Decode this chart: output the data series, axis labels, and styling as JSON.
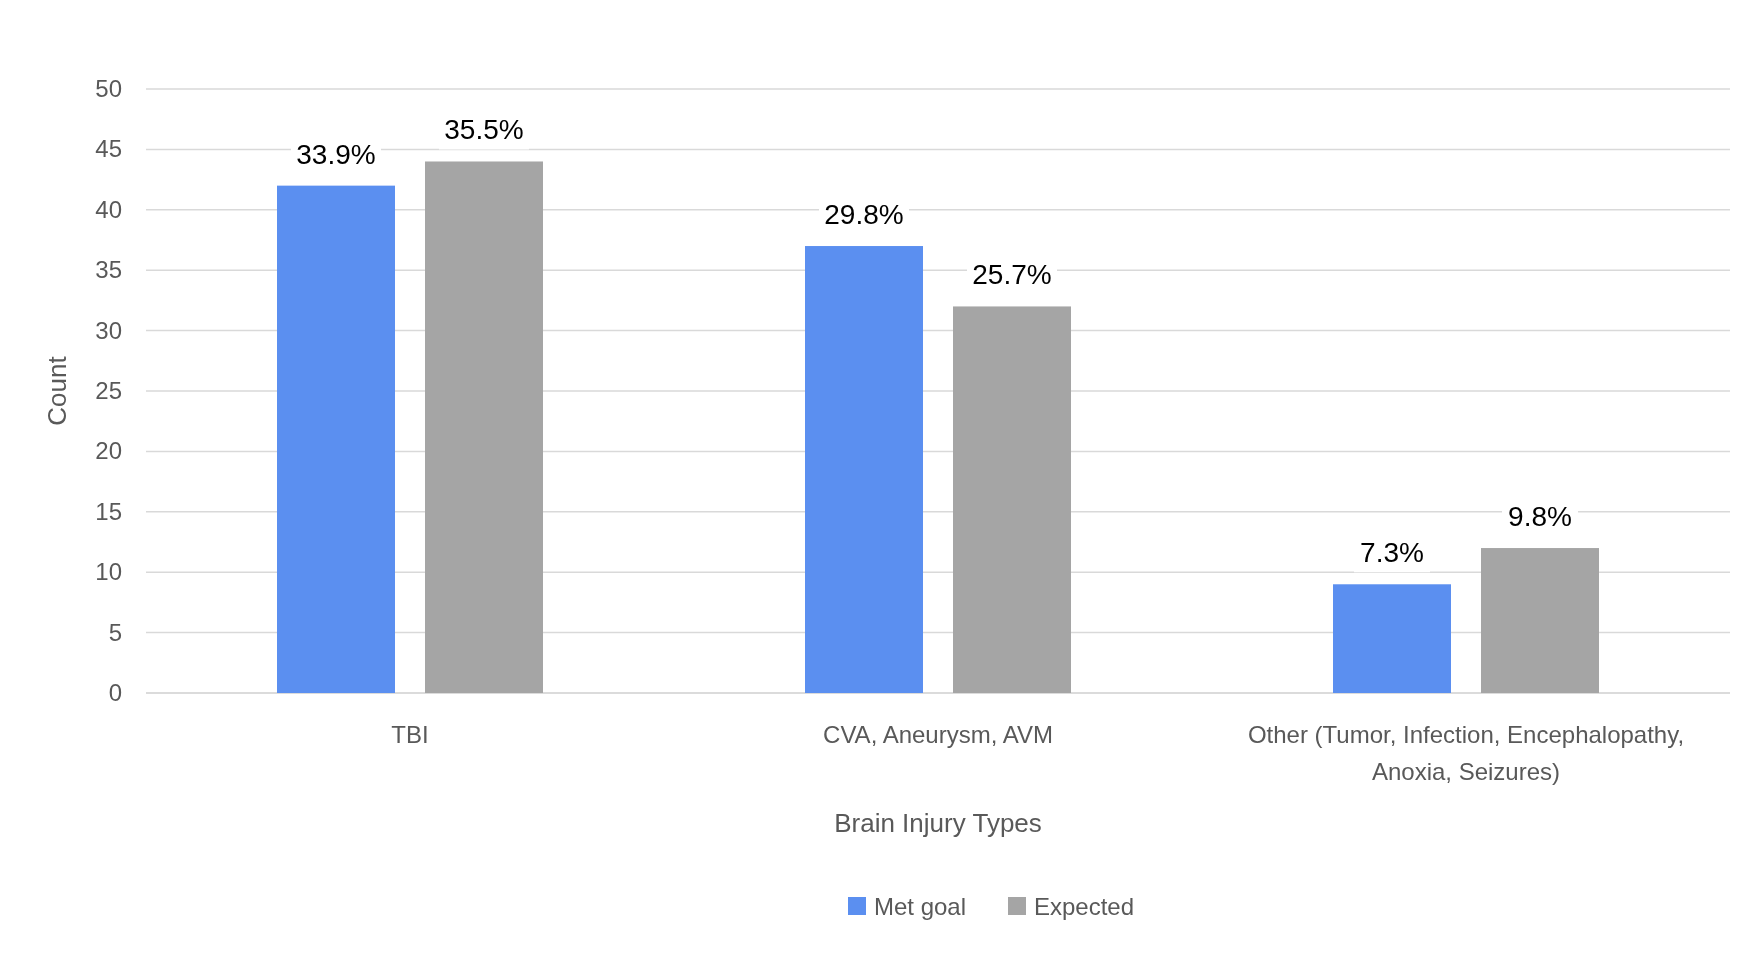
{
  "chart_data": {
    "type": "bar",
    "xlabel": "Brain Injury Types",
    "ylabel": "Count",
    "categories": [
      "TBI",
      "CVA, Aneurysm, AVM",
      "Other (Tumor, Infection, Encephalopathy, Anoxia, Seizures)"
    ],
    "series": [
      {
        "name": "Met goal",
        "color": "#5b8ff0",
        "values": [
          42,
          37,
          9
        ]
      },
      {
        "name": "Expected",
        "color": "#a5a5a5",
        "values": [
          44,
          32,
          12
        ]
      }
    ],
    "annotations": [
      "33.9%",
      "35.5%",
      "29.8%",
      "25.7%",
      "7.3%",
      "9.8%"
    ],
    "ylim": [
      0,
      50
    ],
    "yticks": [
      0,
      5,
      10,
      15,
      20,
      25,
      30,
      35,
      40,
      45,
      50
    ],
    "grid": "y",
    "legend": "bottom"
  }
}
